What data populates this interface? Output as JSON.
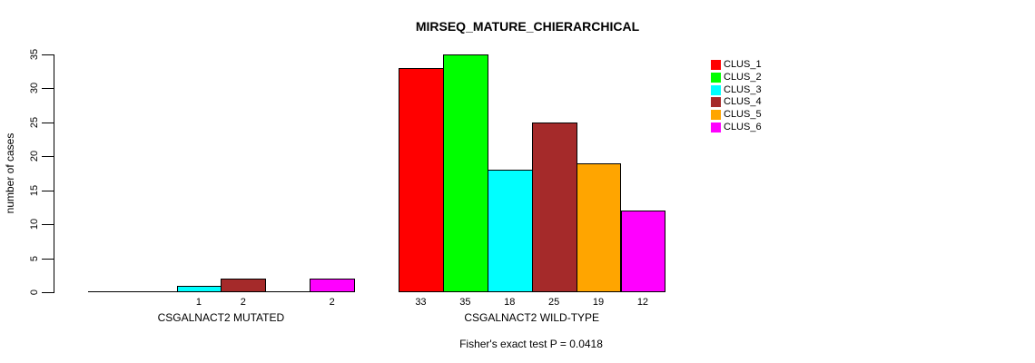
{
  "chart_data": {
    "type": "bar",
    "title": "MIRSEQ_MATURE_CHIERARCHICAL",
    "ylabel": "number of cases",
    "xlabel": "",
    "ylim": [
      0,
      35
    ],
    "yticks": [
      0,
      5,
      10,
      15,
      20,
      25,
      30,
      35
    ],
    "grid": false,
    "legend_position": "right",
    "legend_labels": [
      "CLUS_1",
      "CLUS_2",
      "CLUS_3",
      "CLUS_4",
      "CLUS_5",
      "CLUS_6"
    ],
    "colors": [
      "#FF0000",
      "#00FF00",
      "#00FFFF",
      "#A52A2A",
      "#FFA500",
      "#FF00FF"
    ],
    "categories": [
      "CSGALNACT2 MUTATED",
      "CSGALNACT2 WILD-TYPE"
    ],
    "groups": [
      {
        "label": "CSGALNACT2 MUTATED",
        "values": [
          0,
          0,
          1,
          2,
          0,
          2
        ]
      },
      {
        "label": "CSGALNACT2 WILD-TYPE",
        "values": [
          33,
          35,
          18,
          25,
          19,
          12
        ]
      }
    ],
    "annotation": "Fisher's exact test P = 0.0418"
  }
}
